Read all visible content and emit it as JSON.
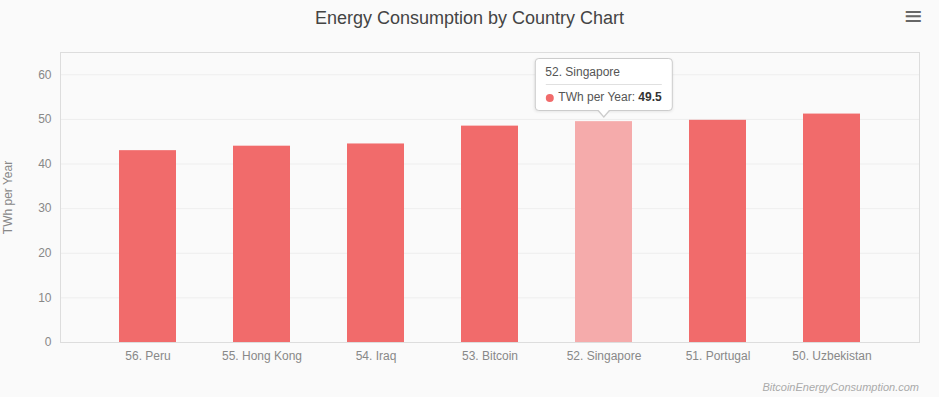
{
  "chart_data": {
    "type": "bar",
    "title": "Energy Consumption by Country Chart",
    "categories": [
      "56. Peru",
      "55. Hong Kong",
      "54. Iraq",
      "53. Bitcoin",
      "52. Singapore",
      "51. Portugal",
      "50. Uzbekistan"
    ],
    "values": [
      43.0,
      44.0,
      44.5,
      48.5,
      49.5,
      49.8,
      51.2
    ],
    "colors": [
      "#F16B6B",
      "#F16B6B",
      "#F16B6B",
      "#F16B6B",
      "#F5ABAB",
      "#F16B6B",
      "#F16B6B"
    ],
    "ylabel": "TWh per Year",
    "ylim": [
      0,
      65
    ],
    "yticks": [
      0,
      10,
      20,
      30,
      40,
      50,
      60
    ],
    "grid": true,
    "annotations": [
      {
        "category": "52. Singapore",
        "title": "52. Singapore",
        "label": "TWh per Year:",
        "value": 49.5
      },
      {
        "text": "BitcoinEnergyConsumption.com"
      },
      {
        "text": "≡"
      }
    ]
  }
}
